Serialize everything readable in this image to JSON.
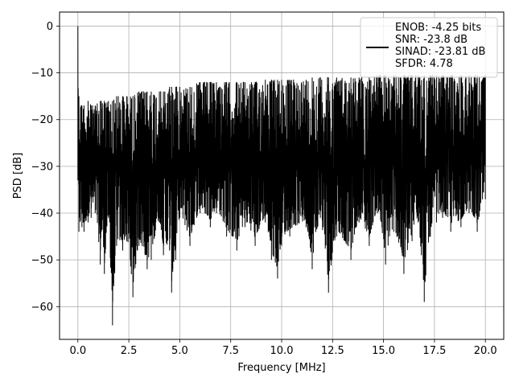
{
  "chart_data": {
    "type": "line",
    "xlabel": "Frequency [MHz]",
    "ylabel": "PSD [dB]",
    "xlim": [
      -0.9,
      20.9
    ],
    "ylim": [
      -67,
      3
    ],
    "x_ticks": [
      0.0,
      2.5,
      5.0,
      7.5,
      10.0,
      12.5,
      15.0,
      17.5,
      20.0
    ],
    "x_tick_labels": [
      "0.0",
      "2.5",
      "5.0",
      "7.5",
      "10.0",
      "12.5",
      "15.0",
      "17.5",
      "20.0"
    ],
    "y_ticks": [
      0,
      -10,
      -20,
      -30,
      -40,
      -50,
      -60
    ],
    "y_tick_labels": [
      "0",
      "−10",
      "−20",
      "−30",
      "−40",
      "−50",
      "−60"
    ],
    "grid": true,
    "legend_placement": "top-right",
    "series": [
      {
        "name": "ENOB: -4.25 bits\nSNR: -23.8 dB\nSINAD: -23.81 dB\nSFDR: 4.78",
        "color": "#000000",
        "x": [
          0.0,
          0.05,
          0.2,
          0.3,
          0.5,
          0.65,
          0.85,
          1.1,
          1.15,
          1.3,
          1.5,
          1.7,
          1.9,
          2.2,
          2.4,
          2.7,
          3.0,
          3.4,
          3.6,
          4.0,
          4.2,
          4.5,
          4.6,
          4.8,
          5.0,
          5.5,
          6.0,
          6.5,
          6.8,
          7.3,
          7.8,
          8.2,
          8.7,
          9.2,
          9.5,
          9.8,
          10.0,
          10.4,
          11.2,
          11.5,
          11.9,
          12.3,
          12.7,
          13.4,
          13.8,
          14.3,
          14.7,
          15.1,
          15.5,
          16.0,
          16.4,
          16.7,
          17.0,
          17.3,
          17.6,
          17.9,
          18.3,
          18.8,
          19.2,
          19.6,
          20.0
        ],
        "y_low": [
          -33,
          -44,
          -43,
          -44,
          -42,
          -41,
          -40,
          -51,
          -44,
          -53,
          -41,
          -64,
          -47,
          -48,
          -46,
          -58,
          -47,
          -52,
          -50,
          -42,
          -49,
          -48,
          -57,
          -50,
          -41,
          -47,
          -40,
          -43,
          -40,
          -45,
          -48,
          -43,
          -47,
          -42,
          -50,
          -54,
          -47,
          -45,
          -43,
          -52,
          -41,
          -57,
          -45,
          -50,
          -42,
          -47,
          -40,
          -51,
          -44,
          -53,
          -46,
          -42,
          -59,
          -45,
          -42,
          -41,
          -44,
          -43,
          -40,
          -44,
          -37
        ],
        "y_high": [
          0,
          -15,
          -17,
          -17,
          -16,
          -17,
          -17,
          -16,
          -16,
          -16,
          -16,
          -16,
          -15,
          -15,
          -15,
          -15,
          -14,
          -14,
          -14,
          -14,
          -14,
          -13,
          -13,
          -13,
          -13,
          -13,
          -12,
          -12,
          -12,
          -12,
          -12,
          -12,
          -12,
          -11.5,
          -11.5,
          -11.5,
          -11.5,
          -11.5,
          -11.5,
          -11,
          -11,
          -11,
          -11,
          -11,
          -11,
          -11,
          -10.5,
          -10.5,
          -10.5,
          -10.5,
          -10.5,
          -10.5,
          -10.5,
          -10.5,
          -10.5,
          -10.5,
          -10.5,
          -10.5,
          -10.5,
          -10.5,
          -10.5
        ]
      }
    ]
  }
}
